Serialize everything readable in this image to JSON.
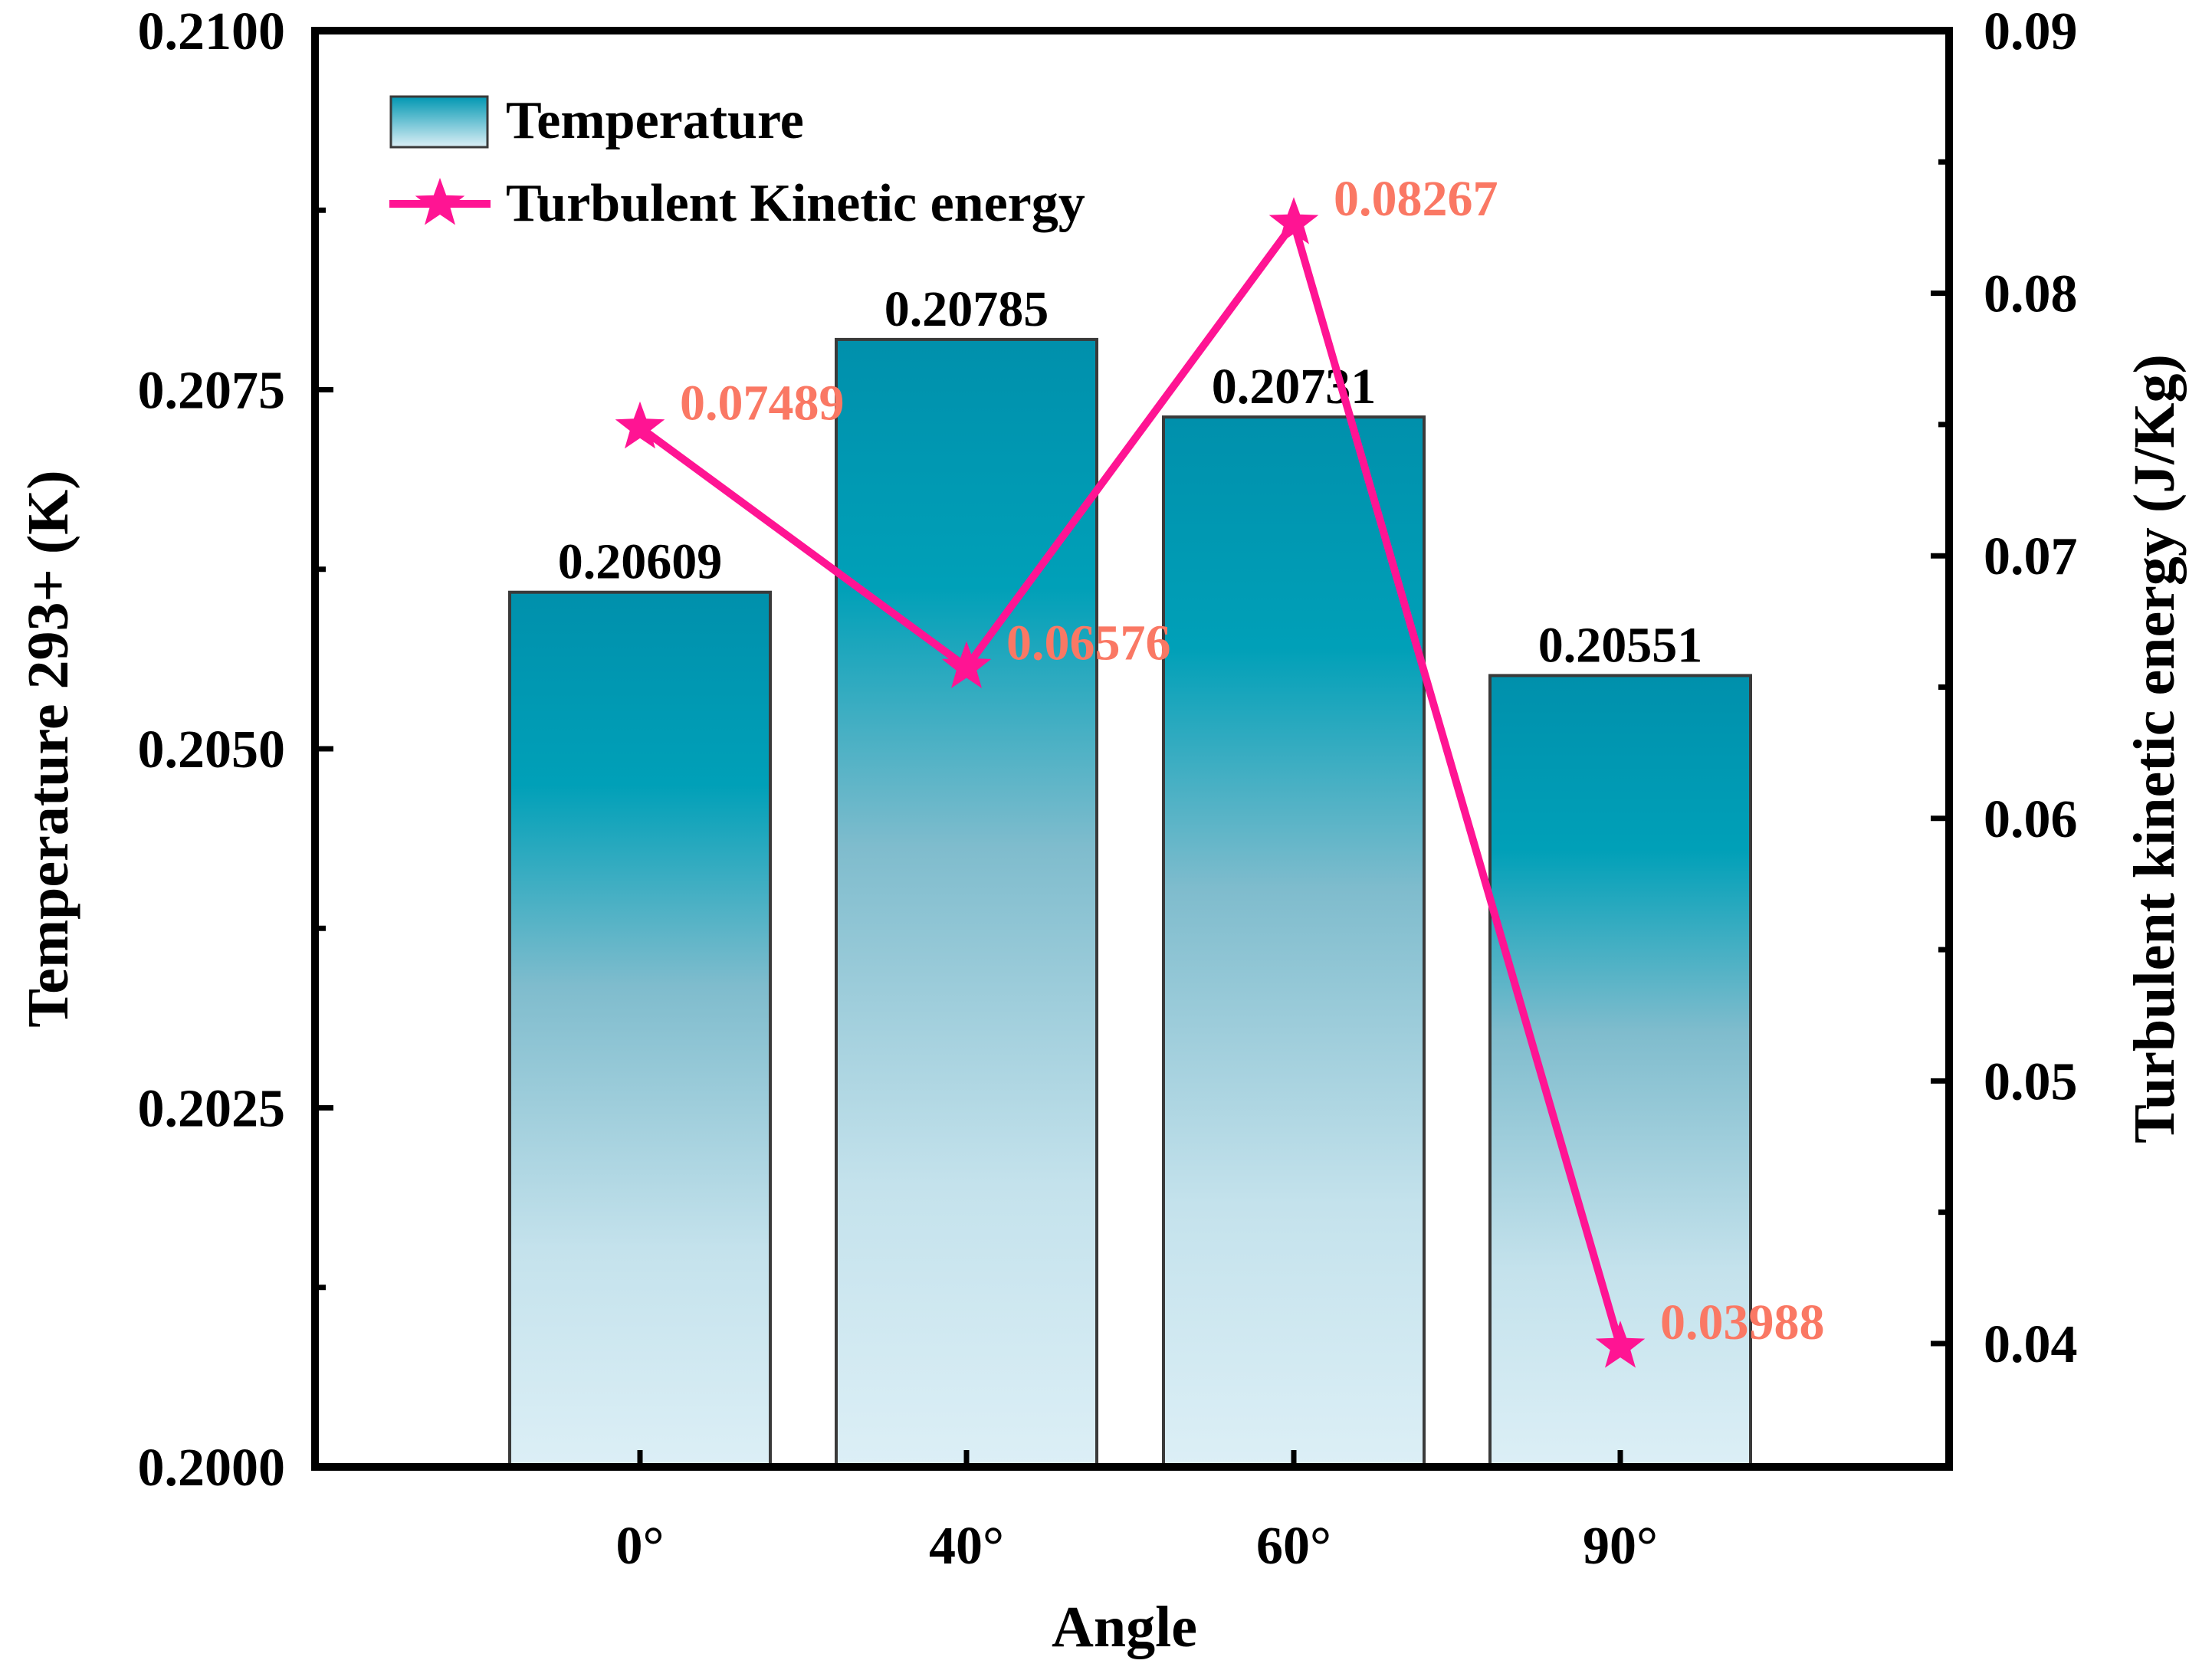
{
  "chart_data": {
    "type": "bar+line",
    "categories": [
      "0°",
      "40°",
      "60°",
      "90°"
    ],
    "xlabel": "Angle",
    "series": [
      {
        "name": "Temperature",
        "kind": "bar",
        "axis": "left",
        "values": [
          0.20609,
          0.20785,
          0.20731,
          0.20551
        ],
        "labels": [
          "0.20609",
          "0.20785",
          "0.20731",
          "0.20551"
        ]
      },
      {
        "name": "Turbulent Kinetic energy",
        "kind": "line",
        "axis": "right",
        "marker": "star",
        "values": [
          0.07489,
          0.06576,
          0.08267,
          0.03988
        ],
        "labels": [
          "0.07489",
          "0.06576",
          "0.08267",
          "0.03988"
        ]
      }
    ],
    "left_axis": {
      "label": "Temperature 293+ (K)",
      "ylim": [
        0.2,
        0.21
      ],
      "ticks": [
        0.2,
        0.2025,
        0.205,
        0.2075,
        0.21
      ],
      "tick_labels": [
        "0.2000",
        "0.2025",
        "0.2050",
        "0.2075",
        "0.2100"
      ]
    },
    "right_axis": {
      "label": "Turbulent kinetic energy (J/Kg)",
      "ylim": [
        0.0353,
        0.09
      ],
      "ticks": [
        0.04,
        0.05,
        0.06,
        0.07,
        0.08,
        0.09
      ],
      "tick_labels": [
        "0.04",
        "0.05",
        "0.06",
        "0.07",
        "0.08",
        "0.09"
      ]
    },
    "legend": {
      "placement": "top-left",
      "entries": [
        "Temperature",
        "Turbulent Kinetic energy"
      ]
    },
    "colors": {
      "bar_top": "#0097b2",
      "bar_bottom": "#dceff6",
      "bar_edge": "#3a3a3a",
      "line": "#ff1493",
      "line_label": "#fa7864",
      "axis": "#000000"
    }
  }
}
